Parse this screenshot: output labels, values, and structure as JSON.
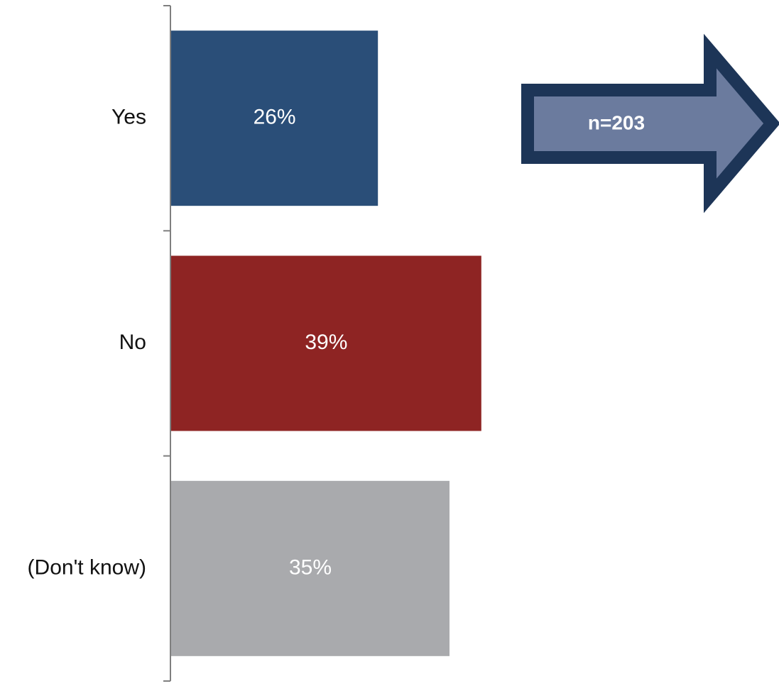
{
  "chart_data": {
    "type": "bar",
    "orientation": "horizontal",
    "categories": [
      "Yes",
      "No",
      "(Don't know)"
    ],
    "values": [
      26,
      39,
      35
    ],
    "value_labels": [
      "26%",
      "39%",
      "35%"
    ],
    "unit": "%",
    "xlim": [
      0,
      100
    ],
    "grid": false,
    "legend": "none",
    "bar_colors": [
      "#2a4e78",
      "#8e2423",
      "#a9aaad"
    ],
    "title": "",
    "xlabel": "",
    "ylabel": ""
  },
  "callout": {
    "text": "n=203",
    "shape": "right-arrow",
    "fill_color": "#6b7b9e",
    "border_color": "#1d3557"
  }
}
